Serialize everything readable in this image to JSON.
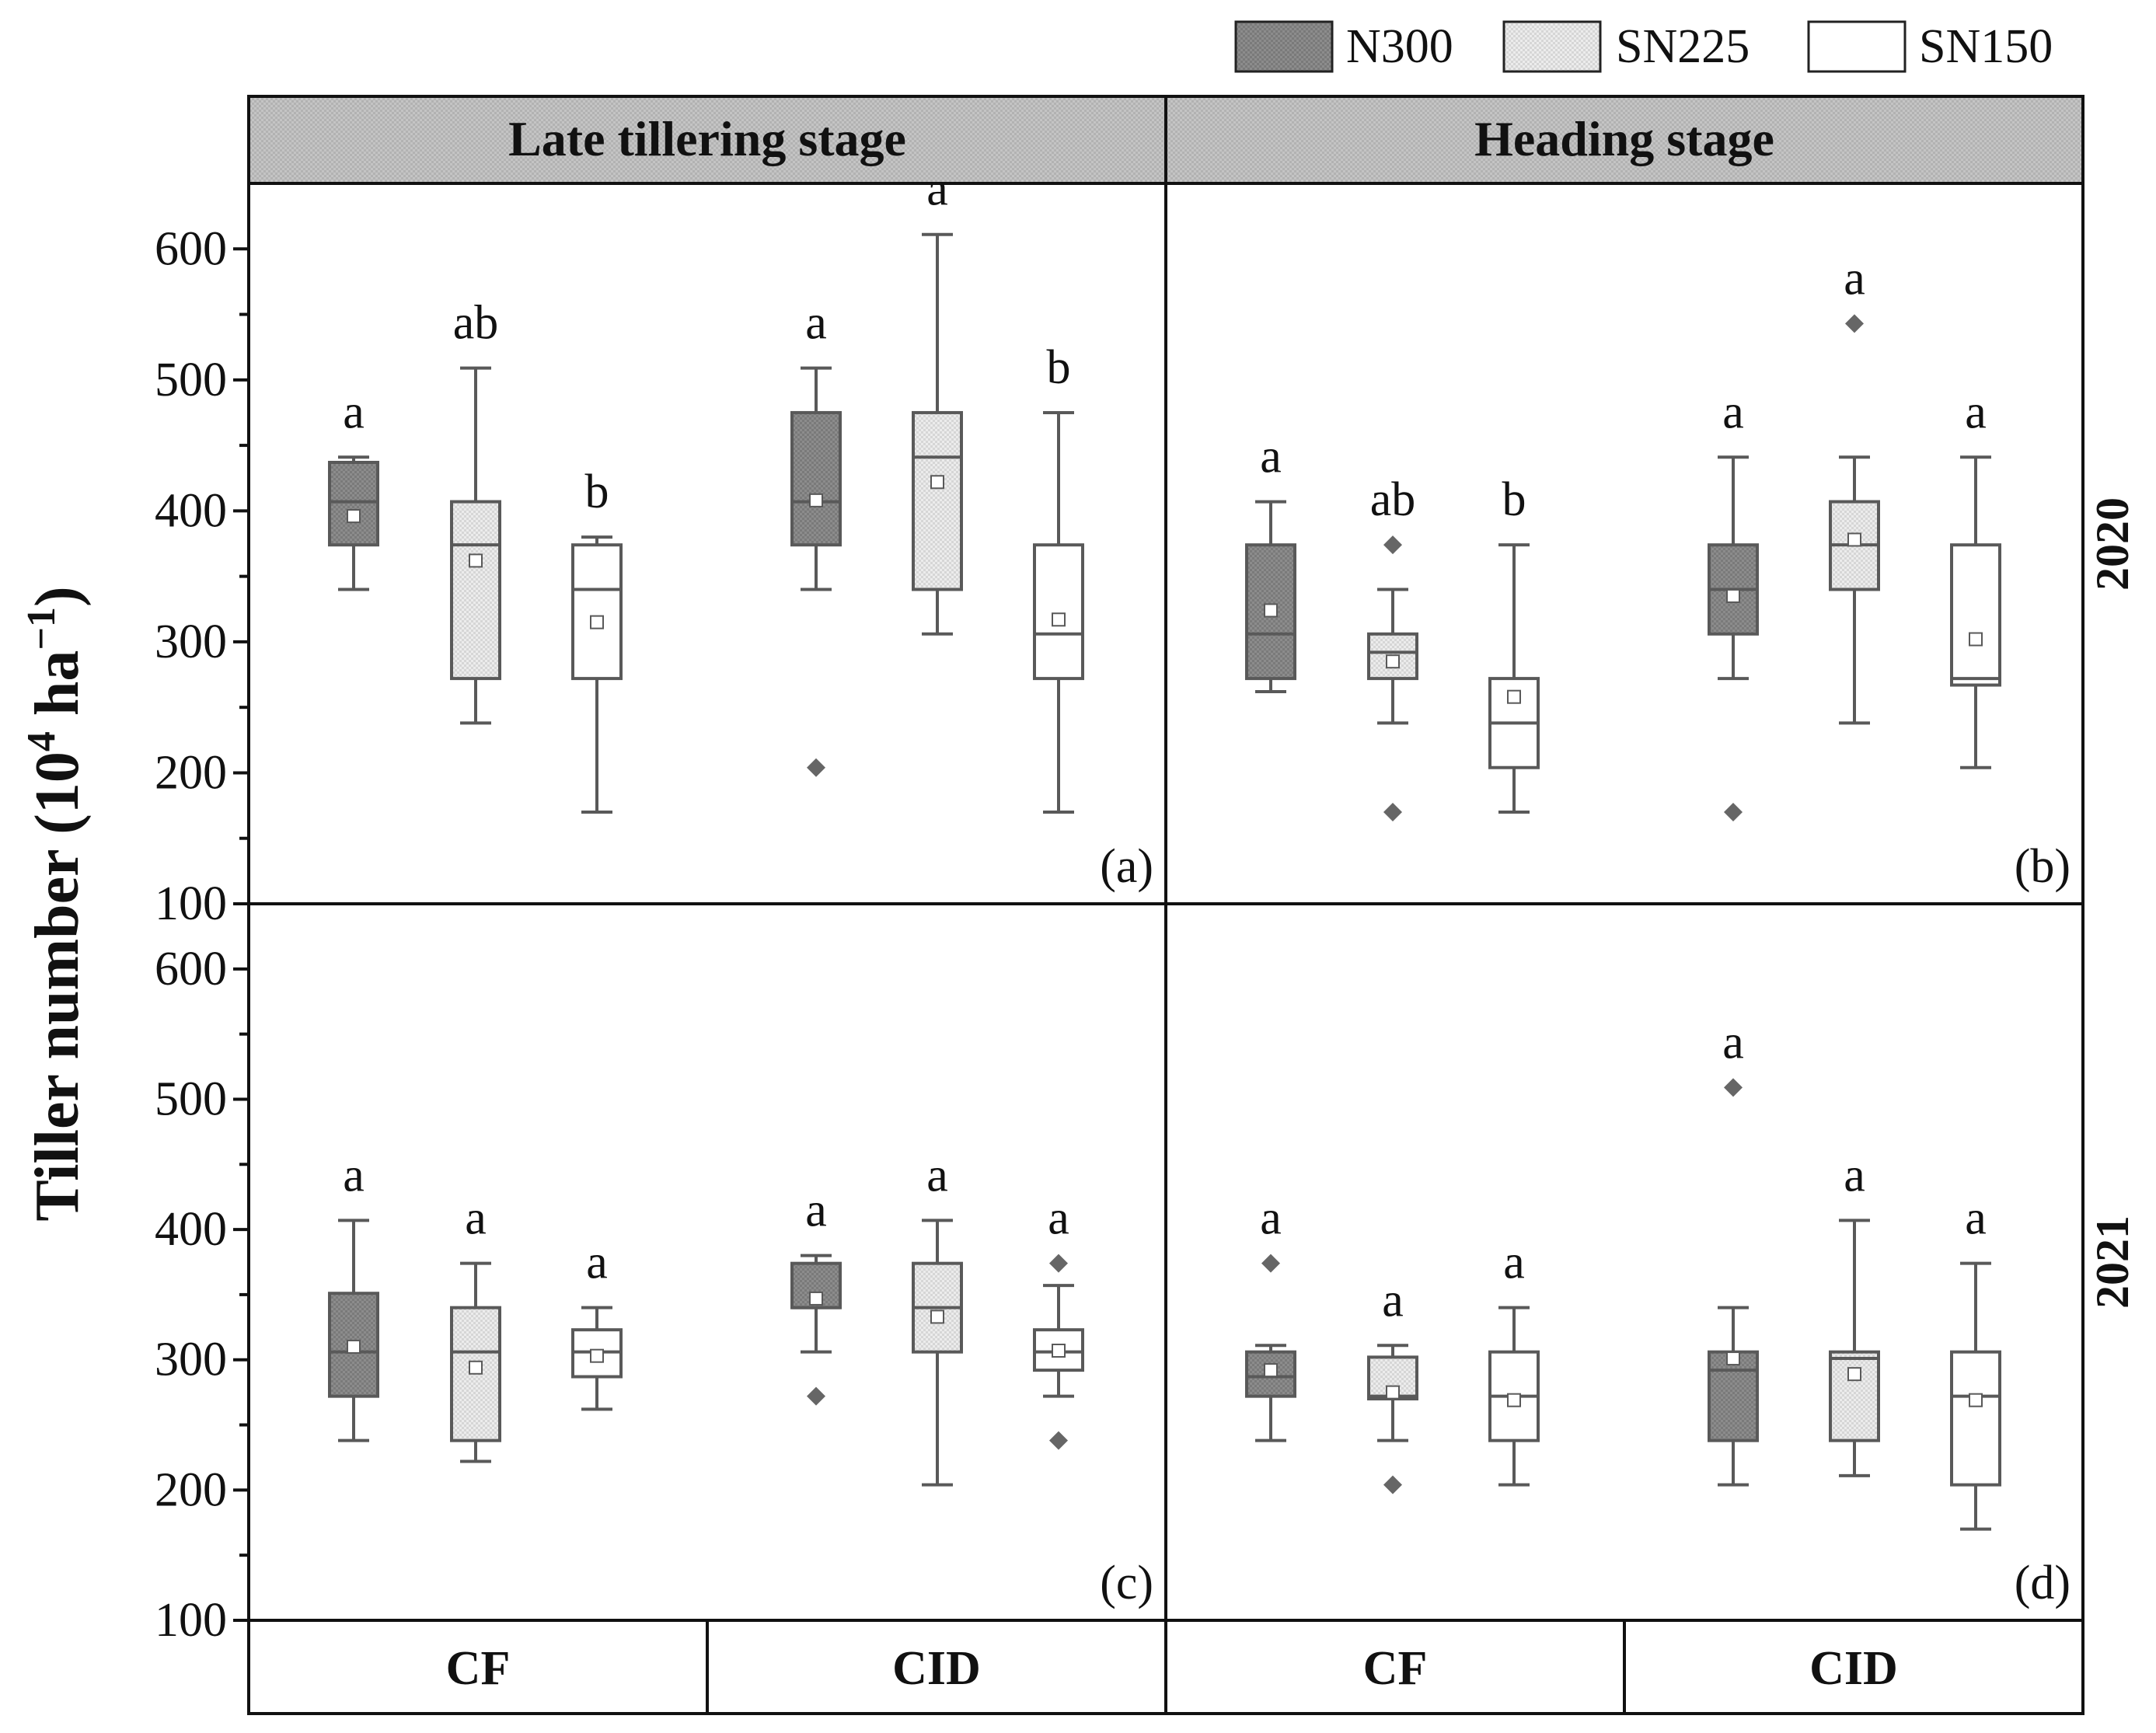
{
  "chart_data": {
    "type": "boxplot",
    "ylabel_main": "Tiller number (10",
    "ylabel_sup1": "4",
    "ylabel_mid": " ha",
    "ylabel_sup2": "−1",
    "ylabel_end": ")",
    "ylim": [
      100,
      650
    ],
    "yticks": [
      100,
      200,
      300,
      400,
      500,
      600
    ],
    "legend": [
      {
        "name": "N300",
        "color": "#8a8a8a"
      },
      {
        "name": "SN225",
        "color": "#e4e4e4"
      },
      {
        "name": "SN150",
        "color": "#ffffff"
      }
    ],
    "stages": [
      "Late tillering stage",
      "Heading stage"
    ],
    "years": [
      "2020",
      "2021"
    ],
    "groups": [
      "CF",
      "CID",
      "CF",
      "CID"
    ],
    "panels": [
      {
        "label": "(a)",
        "stage": "Late tillering stage",
        "year": "2020",
        "boxes": [
          {
            "group": "CF",
            "series": "N300",
            "whislo": 340,
            "q1": 374,
            "med": 407,
            "q3": 437,
            "whishi": 441,
            "mean": 396,
            "fliers": [],
            "letter": "a"
          },
          {
            "group": "CF",
            "series": "SN225",
            "whislo": 238,
            "q1": 272,
            "med": 374,
            "q3": 407,
            "whishi": 509,
            "mean": 362,
            "fliers": [],
            "letter": "ab"
          },
          {
            "group": "CF",
            "series": "SN150",
            "whislo": 170,
            "q1": 272,
            "med": 340,
            "q3": 374,
            "whishi": 380,
            "mean": 315,
            "fliers": [],
            "letter": "b"
          },
          {
            "group": "CID",
            "series": "N300",
            "whislo": 340,
            "q1": 374,
            "med": 407,
            "q3": 475,
            "whishi": 509,
            "mean": 408,
            "fliers": [
              204
            ],
            "letter": "a"
          },
          {
            "group": "CID",
            "series": "SN225",
            "whislo": 306,
            "q1": 340,
            "med": 441,
            "q3": 475,
            "whishi": 611,
            "mean": 422,
            "fliers": [],
            "letter": "a"
          },
          {
            "group": "CID",
            "series": "SN150",
            "whislo": 170,
            "q1": 272,
            "med": 306,
            "q3": 374,
            "whishi": 475,
            "mean": 317,
            "fliers": [],
            "letter": "b"
          }
        ]
      },
      {
        "label": "(b)",
        "stage": "Heading stage",
        "year": "2020",
        "boxes": [
          {
            "group": "CF",
            "series": "N300",
            "whislo": 262,
            "q1": 272,
            "med": 306,
            "q3": 374,
            "whishi": 407,
            "mean": 324,
            "fliers": [],
            "letter": "a"
          },
          {
            "group": "CF",
            "series": "SN225",
            "whislo": 238,
            "q1": 272,
            "med": 292,
            "q3": 306,
            "whishi": 340,
            "mean": 285,
            "fliers": [
              374,
              170
            ],
            "letter": "ab"
          },
          {
            "group": "CF",
            "series": "SN150",
            "whislo": 170,
            "q1": 204,
            "med": 238,
            "q3": 272,
            "whishi": 374,
            "mean": 258,
            "fliers": [],
            "letter": "b"
          },
          {
            "group": "CID",
            "series": "N300",
            "whislo": 272,
            "q1": 306,
            "med": 340,
            "q3": 374,
            "whishi": 441,
            "mean": 335,
            "fliers": [
              170
            ],
            "letter": "a"
          },
          {
            "group": "CID",
            "series": "SN225",
            "whislo": 238,
            "q1": 340,
            "med": 374,
            "q3": 407,
            "whishi": 441,
            "mean": 378,
            "fliers": [
              543
            ],
            "letter": "a"
          },
          {
            "group": "CID",
            "series": "SN150",
            "whislo": 204,
            "q1": 267,
            "med": 272,
            "q3": 374,
            "whishi": 441,
            "mean": 302,
            "fliers": [],
            "letter": "a"
          }
        ]
      },
      {
        "label": "(c)",
        "stage": "Late tillering stage",
        "year": "2021",
        "boxes": [
          {
            "group": "CF",
            "series": "N300",
            "whislo": 238,
            "q1": 272,
            "med": 306,
            "q3": 351,
            "whishi": 407,
            "mean": 310,
            "fliers": [],
            "letter": "a"
          },
          {
            "group": "CF",
            "series": "SN225",
            "whislo": 222,
            "q1": 238,
            "med": 306,
            "q3": 340,
            "whishi": 374,
            "mean": 294,
            "fliers": [],
            "letter": "a"
          },
          {
            "group": "CF",
            "series": "SN150",
            "whislo": 262,
            "q1": 287,
            "med": 306,
            "q3": 323,
            "whishi": 340,
            "mean": 303,
            "fliers": [],
            "letter": "a"
          },
          {
            "group": "CID",
            "series": "N300",
            "whislo": 306,
            "q1": 340,
            "med": 340,
            "q3": 374,
            "whishi": 380,
            "mean": 347,
            "fliers": [
              272
            ],
            "letter": "a"
          },
          {
            "group": "CID",
            "series": "SN225",
            "whislo": 204,
            "q1": 306,
            "med": 340,
            "q3": 374,
            "whishi": 407,
            "mean": 333,
            "fliers": [],
            "letter": "a"
          },
          {
            "group": "CID",
            "series": "SN150",
            "whislo": 272,
            "q1": 292,
            "med": 306,
            "q3": 323,
            "whishi": 357,
            "mean": 307,
            "fliers": [
              374,
              238
            ],
            "letter": "a"
          }
        ]
      },
      {
        "label": "(d)",
        "stage": "Heading stage",
        "year": "2021",
        "boxes": [
          {
            "group": "CF",
            "series": "N300",
            "whislo": 238,
            "q1": 272,
            "med": 287,
            "q3": 306,
            "whishi": 311,
            "mean": 292,
            "fliers": [
              374
            ],
            "letter": "a"
          },
          {
            "group": "CF",
            "series": "SN225",
            "whislo": 238,
            "q1": 270,
            "med": 272,
            "q3": 302,
            "whishi": 311,
            "mean": 275,
            "fliers": [
              204
            ],
            "letter": "a"
          },
          {
            "group": "CF",
            "series": "SN150",
            "whislo": 204,
            "q1": 238,
            "med": 272,
            "q3": 306,
            "whishi": 340,
            "mean": 269,
            "fliers": [],
            "letter": "a"
          },
          {
            "group": "CID",
            "series": "N300",
            "whislo": 204,
            "q1": 238,
            "med": 292,
            "q3": 306,
            "whishi": 340,
            "mean": 301,
            "fliers": [
              509
            ],
            "letter": "a"
          },
          {
            "group": "CID",
            "series": "SN225",
            "whislo": 211,
            "q1": 238,
            "med": 301,
            "q3": 306,
            "whishi": 407,
            "mean": 289,
            "fliers": [],
            "letter": "a"
          },
          {
            "group": "CID",
            "series": "SN150",
            "whislo": 170,
            "q1": 204,
            "med": 272,
            "q3": 306,
            "whishi": 374,
            "mean": 269,
            "fliers": [],
            "letter": "a"
          }
        ]
      }
    ]
  }
}
